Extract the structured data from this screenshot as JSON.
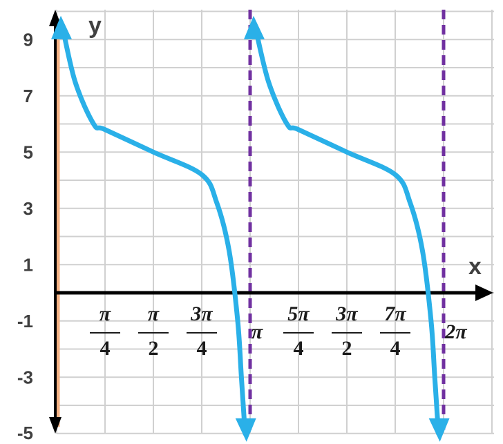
{
  "chart_data": {
    "type": "line",
    "function": "y = 5 - tan(x)",
    "xlabel": "x",
    "ylabel": "y",
    "xlim": [
      0,
      6.5
    ],
    "ylim": [
      -5,
      9.5
    ],
    "grid": true,
    "y_ticks": [
      {
        "value": 9,
        "label": "9"
      },
      {
        "value": 7,
        "label": "7"
      },
      {
        "value": 5,
        "label": "5"
      },
      {
        "value": 3,
        "label": "3"
      },
      {
        "value": 1,
        "label": "1"
      },
      {
        "value": -1,
        "label": "-1"
      },
      {
        "value": -3,
        "label": "-3"
      },
      {
        "value": -5,
        "label": "-5"
      }
    ],
    "x_ticks": [
      {
        "value": 0.7854,
        "num": "π",
        "den": "4"
      },
      {
        "value": 1.5708,
        "num": "π",
        "den": "2"
      },
      {
        "value": 2.3562,
        "num": "3π",
        "den": "4"
      },
      {
        "value": 3.1416,
        "label": "π"
      },
      {
        "value": 3.927,
        "num": "5π",
        "den": "4"
      },
      {
        "value": 4.7124,
        "num": "3π",
        "den": "2"
      },
      {
        "value": 5.4978,
        "num": "7π",
        "den": "4"
      },
      {
        "value": 6.2832,
        "label": "2π"
      }
    ],
    "asymptotes": [
      0,
      3.1416,
      6.2832
    ],
    "series": [
      {
        "points": [
          {
            "x": 0.09,
            "y": 9.5
          },
          {
            "x": 0.3,
            "y": 7.5
          },
          {
            "x": 0.6,
            "y": 6.0
          },
          {
            "x": 0.7854,
            "y": 5.8
          },
          {
            "x": 1.5708,
            "y": 5.0
          },
          {
            "x": 2.3562,
            "y": 4.2
          },
          {
            "x": 2.6,
            "y": 3.2
          },
          {
            "x": 2.8,
            "y": 1.5
          },
          {
            "x": 2.94,
            "y": -1.0
          },
          {
            "x": 3.0,
            "y": -3.0
          },
          {
            "x": 3.06,
            "y": -5.0
          }
        ]
      },
      {
        "points": [
          {
            "x": 3.22,
            "y": 9.5
          },
          {
            "x": 3.44,
            "y": 7.5
          },
          {
            "x": 3.74,
            "y": 6.0
          },
          {
            "x": 3.927,
            "y": 5.8
          },
          {
            "x": 4.7124,
            "y": 5.0
          },
          {
            "x": 5.4978,
            "y": 4.2
          },
          {
            "x": 5.74,
            "y": 3.2
          },
          {
            "x": 5.94,
            "y": 1.5
          },
          {
            "x": 6.08,
            "y": -1.0
          },
          {
            "x": 6.14,
            "y": -3.0
          },
          {
            "x": 6.2,
            "y": -5.0
          }
        ]
      }
    ],
    "colors": {
      "curve": "#2ab0e8",
      "asymptote": "#7030a0",
      "axis": "#000000",
      "grid": "#d0d0d0",
      "y_axis_shadow": "#f4b183",
      "tick_text": "#404040"
    }
  }
}
